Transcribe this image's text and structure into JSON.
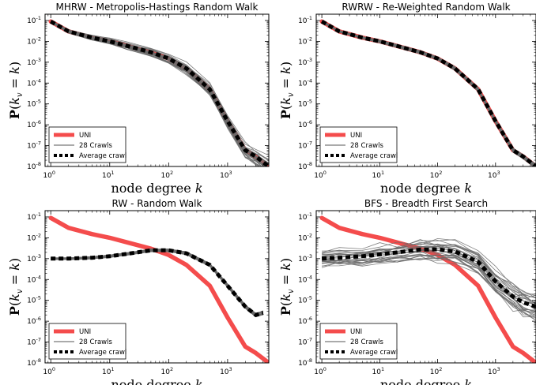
{
  "chart_data": [
    {
      "type": "line",
      "title": "MHRW - Metropolis-Hastings Random Walk",
      "xlabel": "node degree k",
      "ylabel": "P(k_v = k)",
      "xscale": "log",
      "yscale": "log",
      "xlim": [
        0.8,
        5000
      ],
      "ylim": [
        1e-08,
        0.2
      ],
      "xticks": [
        "10^0",
        "10^1",
        "10^2",
        "10^3"
      ],
      "yticks": [
        "10^-1",
        "10^-2",
        "10^-3",
        "10^-4",
        "10^-5",
        "10^-6",
        "10^-7",
        "10^-8"
      ],
      "legend_position": "lower-left",
      "legend": [
        "UNI",
        "28 Crawls",
        "Average crawl"
      ],
      "crawl_band": [
        0.05,
        0.4
      ],
      "series": [
        {
          "name": "UNI",
          "color": "#f44c4c",
          "x": [
            1,
            2,
            5,
            10,
            20,
            50,
            100,
            200,
            500,
            1000,
            2000,
            3000,
            5000
          ],
          "y": [
            0.09,
            0.03,
            0.015,
            0.01,
            0.006,
            0.003,
            0.0015,
            0.0005,
            5e-05,
            1.5e-06,
            6e-08,
            3e-08,
            1e-08
          ]
        },
        {
          "name": "Average crawl",
          "color": "#000000",
          "x": [
            1,
            2,
            5,
            10,
            20,
            50,
            100,
            200,
            500,
            1000,
            2000,
            3000,
            5000
          ],
          "y": [
            0.09,
            0.03,
            0.015,
            0.01,
            0.006,
            0.003,
            0.0015,
            0.0005,
            5e-05,
            1.5e-06,
            6e-08,
            3e-08,
            1e-08
          ]
        }
      ]
    },
    {
      "type": "line",
      "title": "RWRW - Re-Weighted Random Walk",
      "xlabel": "node degree k",
      "ylabel": "P(k_v = k)",
      "xscale": "log",
      "yscale": "log",
      "xlim": [
        0.8,
        5000
      ],
      "ylim": [
        1e-08,
        0.2
      ],
      "xticks": [
        "10^0",
        "10^1",
        "10^2",
        "10^3"
      ],
      "yticks": [
        "10^-1",
        "10^-2",
        "10^-3",
        "10^-4",
        "10^-5",
        "10^-6",
        "10^-7",
        "10^-8"
      ],
      "legend_position": "lower-left",
      "legend": [
        "UNI",
        "28 Crawls",
        "Average crawl"
      ],
      "crawl_band": [
        0.04,
        0.1
      ],
      "series": [
        {
          "name": "UNI",
          "color": "#f44c4c",
          "x": [
            1,
            2,
            5,
            10,
            20,
            50,
            100,
            200,
            500,
            1000,
            2000,
            3000,
            5000
          ],
          "y": [
            0.09,
            0.03,
            0.015,
            0.01,
            0.006,
            0.003,
            0.0015,
            0.0005,
            5e-05,
            1.5e-06,
            6e-08,
            3e-08,
            1e-08
          ]
        },
        {
          "name": "Average crawl",
          "color": "#000000",
          "x": [
            1,
            2,
            5,
            10,
            20,
            50,
            100,
            200,
            500,
            1000,
            2000,
            3000,
            5000
          ],
          "y": [
            0.09,
            0.03,
            0.015,
            0.01,
            0.006,
            0.003,
            0.0015,
            0.0005,
            5e-05,
            1.5e-06,
            6e-08,
            3e-08,
            1e-08
          ]
        }
      ]
    },
    {
      "type": "line",
      "title": "RW - Random Walk",
      "xlabel": "node degree k",
      "ylabel": "P(k_v = k)",
      "xscale": "log",
      "yscale": "log",
      "xlim": [
        0.8,
        5000
      ],
      "ylim": [
        1e-08,
        0.2
      ],
      "xticks": [
        "10^0",
        "10^1",
        "10^2",
        "10^3"
      ],
      "yticks": [
        "10^-1",
        "10^-2",
        "10^-3",
        "10^-4",
        "10^-5",
        "10^-6",
        "10^-7",
        "10^-8"
      ],
      "legend_position": "lower-left",
      "legend": [
        "UNI",
        "28 Crawls",
        "Average crawl"
      ],
      "crawl_band": [
        0.04,
        0.08
      ],
      "series": [
        {
          "name": "UNI",
          "color": "#f44c4c",
          "x": [
            1,
            2,
            5,
            10,
            20,
            50,
            100,
            200,
            500,
            1000,
            2000,
            3000,
            5000
          ],
          "y": [
            0.09,
            0.03,
            0.015,
            0.01,
            0.006,
            0.003,
            0.0015,
            0.0005,
            5e-05,
            1.5e-06,
            6e-08,
            3e-08,
            1e-08
          ]
        },
        {
          "name": "Average crawl",
          "color": "#000000",
          "x": [
            1,
            2,
            5,
            10,
            20,
            50,
            100,
            200,
            500,
            1000,
            2000,
            3000,
            4000
          ],
          "y": [
            0.001,
            0.001,
            0.0011,
            0.0013,
            0.0017,
            0.0025,
            0.0025,
            0.0018,
            0.0005,
            5e-05,
            5e-06,
            2e-06,
            2.5e-06
          ]
        }
      ]
    },
    {
      "type": "line",
      "title": "BFS - Breadth First Search",
      "xlabel": "node degree k",
      "ylabel": "P(k_v = k)",
      "xscale": "log",
      "yscale": "log",
      "xlim": [
        0.8,
        5000
      ],
      "ylim": [
        1e-08,
        0.2
      ],
      "xticks": [
        "10^0",
        "10^1",
        "10^2",
        "10^3"
      ],
      "yticks": [
        "10^-1",
        "10^-2",
        "10^-3",
        "10^-4",
        "10^-5",
        "10^-6",
        "10^-7",
        "10^-8"
      ],
      "legend_position": "lower-left",
      "legend": [
        "UNI",
        "28 Crawls",
        "Average crawl"
      ],
      "crawl_band": [
        0.35,
        0.65
      ],
      "series": [
        {
          "name": "UNI",
          "color": "#f44c4c",
          "x": [
            1,
            2,
            5,
            10,
            20,
            50,
            100,
            200,
            500,
            1000,
            2000,
            3000,
            5000
          ],
          "y": [
            0.09,
            0.03,
            0.015,
            0.01,
            0.006,
            0.003,
            0.0015,
            0.0005,
            5e-05,
            1.5e-06,
            6e-08,
            3e-08,
            1e-08
          ]
        },
        {
          "name": "Average crawl",
          "color": "#000000",
          "x": [
            1,
            2,
            5,
            10,
            20,
            50,
            100,
            200,
            500,
            1000,
            2000,
            3000,
            5000
          ],
          "y": [
            0.001,
            0.0011,
            0.0013,
            0.0016,
            0.002,
            0.0027,
            0.0028,
            0.0022,
            0.0007,
            8e-05,
            1.5e-05,
            8e-06,
            5e-06
          ]
        }
      ]
    }
  ]
}
